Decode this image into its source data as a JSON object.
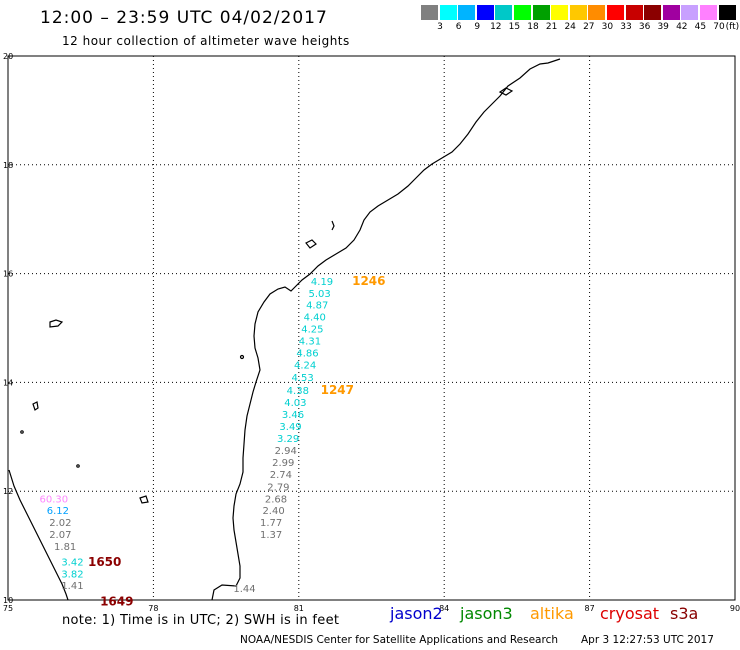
{
  "header": {
    "title": "12:00 – 23:59 UTC 04/02/2017",
    "subtitle": "12 hour collection of altimeter wave heights"
  },
  "legend": {
    "colors": [
      "#808080",
      "#00ffff",
      "#00b4ff",
      "#0000ff",
      "#00c8c8",
      "#00ff00",
      "#00a000",
      "#ffff00",
      "#ffc800",
      "#ff8c00",
      "#ff0000",
      "#c80000",
      "#8b0000",
      "#a000a0",
      "#c8a0ff",
      "#ff80ff",
      "#000000"
    ],
    "labels": [
      "3",
      "6",
      "9",
      "12",
      "15",
      "18",
      "21",
      "24",
      "27",
      "30",
      "33",
      "36",
      "39",
      "42",
      "45",
      "70"
    ],
    "unit": "(ft)"
  },
  "map": {
    "x_ticks": [
      "75",
      "78",
      "81",
      "84",
      "87",
      "90"
    ],
    "y_ticks": [
      "20",
      "18",
      "16",
      "14",
      "12",
      "10"
    ],
    "pass_times": [
      {
        "text": "1246",
        "lon": 82.1,
        "lat": 15.86,
        "color": "#ff9900"
      },
      {
        "text": "1247",
        "lon": 81.45,
        "lat": 13.86,
        "color": "#ff9900"
      },
      {
        "text": "1650",
        "lon": 76.65,
        "lat": 10.7,
        "color": "#8b0000"
      },
      {
        "text": "1649",
        "lon": 76.9,
        "lat": 9.97,
        "color": "#8b0000"
      }
    ],
    "wave_heights": [
      {
        "text": "4.19",
        "lon": 81.25,
        "lat": 15.86,
        "color": "#00d0d0"
      },
      {
        "text": "5.03",
        "lon": 81.2,
        "lat": 15.64,
        "color": "#00d0d0"
      },
      {
        "text": "4.87",
        "lon": 81.15,
        "lat": 15.43,
        "color": "#00d0d0"
      },
      {
        "text": "4.40",
        "lon": 81.1,
        "lat": 15.21,
        "color": "#00d0d0"
      },
      {
        "text": "4.25",
        "lon": 81.05,
        "lat": 14.99,
        "color": "#00d0d0"
      },
      {
        "text": "4.31",
        "lon": 81.0,
        "lat": 14.77,
        "color": "#00d0d0"
      },
      {
        "text": "4.86",
        "lon": 80.95,
        "lat": 14.55,
        "color": "#00d0d0"
      },
      {
        "text": "4.24",
        "lon": 80.9,
        "lat": 14.33,
        "color": "#00d0d0"
      },
      {
        "text": "4.53",
        "lon": 80.85,
        "lat": 14.1,
        "color": "#00d0d0"
      },
      {
        "text": "4.38",
        "lon": 80.75,
        "lat": 13.86,
        "color": "#00d0d0"
      },
      {
        "text": "4.03",
        "lon": 80.7,
        "lat": 13.64,
        "color": "#00d0d0"
      },
      {
        "text": "3.46",
        "lon": 80.65,
        "lat": 13.42,
        "color": "#00d0d0"
      },
      {
        "text": "3.49",
        "lon": 80.6,
        "lat": 13.2,
        "color": "#00d0d0"
      },
      {
        "text": "3.29",
        "lon": 80.55,
        "lat": 12.98,
        "color": "#00d0d0"
      },
      {
        "text": "2.94",
        "lon": 80.5,
        "lat": 12.76,
        "color": "#707070"
      },
      {
        "text": "2.99",
        "lon": 80.45,
        "lat": 12.54,
        "color": "#707070"
      },
      {
        "text": "2.74",
        "lon": 80.4,
        "lat": 12.32,
        "color": "#707070"
      },
      {
        "text": "2.79",
        "lon": 80.35,
        "lat": 12.09,
        "color": "#707070"
      },
      {
        "text": "2.68",
        "lon": 80.3,
        "lat": 11.87,
        "color": "#707070"
      },
      {
        "text": "2.40",
        "lon": 80.25,
        "lat": 11.65,
        "color": "#707070"
      },
      {
        "text": "1.77",
        "lon": 80.2,
        "lat": 11.43,
        "color": "#707070"
      },
      {
        "text": "1.37",
        "lon": 80.2,
        "lat": 11.21,
        "color": "#707070"
      },
      {
        "text": "1.44",
        "lon": 79.65,
        "lat": 10.22,
        "color": "#707070"
      },
      {
        "text": "60.30",
        "lon": 75.65,
        "lat": 11.87,
        "color": "#ff88ff"
      },
      {
        "text": "6.12",
        "lon": 75.8,
        "lat": 11.65,
        "color": "#00a0ff"
      },
      {
        "text": "2.02",
        "lon": 75.85,
        "lat": 11.43,
        "color": "#707070"
      },
      {
        "text": "2.07",
        "lon": 75.85,
        "lat": 11.21,
        "color": "#707070"
      },
      {
        "text": "1.81",
        "lon": 75.95,
        "lat": 10.99,
        "color": "#707070"
      },
      {
        "text": "3.42",
        "lon": 76.1,
        "lat": 10.71,
        "color": "#00d0d0"
      },
      {
        "text": "3.82",
        "lon": 76.1,
        "lat": 10.49,
        "color": "#00d0d0"
      },
      {
        "text": "1.41",
        "lon": 76.1,
        "lat": 10.28,
        "color": "#707070"
      }
    ]
  },
  "footer": {
    "note": "note:  1) Time is in UTC;  2) SWH is in feet",
    "satellites": [
      {
        "name": "jason2",
        "color": "#0000cc"
      },
      {
        "name": "jason3",
        "color": "#008800"
      },
      {
        "name": "altika",
        "color": "#ff9900"
      },
      {
        "name": "cryosat",
        "color": "#dd0000"
      },
      {
        "name": "s3a",
        "color": "#880000"
      }
    ],
    "credit": "NOAA/NESDIS Center for Satellite Applications and Research",
    "timestamp": "Apr  3 12:27:53 UTC 2017"
  }
}
